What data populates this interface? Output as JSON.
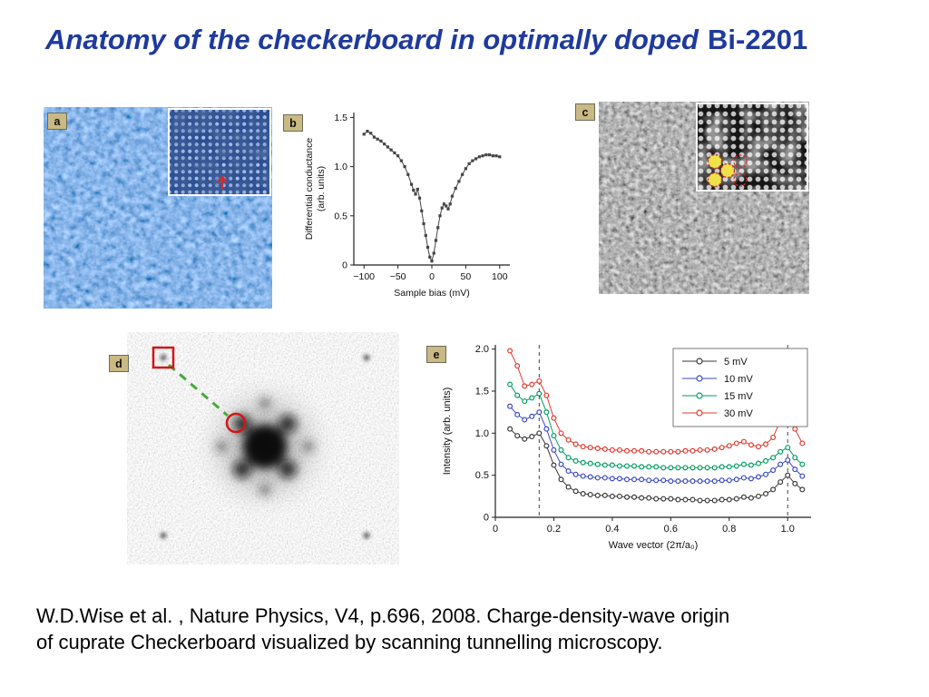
{
  "slide": {
    "title": {
      "italic_part": "Anatomy of the checkerboard in optimally doped",
      "bold_part": "Bi-2201",
      "color": "#1f3a9d"
    },
    "panel_labels": {
      "a": "a",
      "b": "b",
      "c": "c",
      "d": "d",
      "e": "e"
    },
    "citation": {
      "line1": "W.D.Wise et al. , Nature Physics, V4, p.696, 2008. Charge-density-wave origin",
      "line2": "of cuprate Checkerboard visualized by scanning tunnelling microscopy."
    },
    "annotation_colors": {
      "marker_red": "#d41414",
      "dashed_green": "#49a93c",
      "inset_marker_yellow": "#efe14a"
    }
  },
  "chart_data": [
    {
      "id": "panel-b",
      "type": "line",
      "title": "",
      "xlabel": "Sample bias (mV)",
      "ylabel": "Differential conductance (arb. units)",
      "xlim": [
        -115,
        115
      ],
      "ylim": [
        0,
        1.55
      ],
      "xticks": [
        -100,
        -50,
        0,
        50,
        100
      ],
      "xtick_labels": [
        "−100",
        "−50",
        "0",
        "50",
        "100"
      ],
      "yticks": [
        0,
        0.5,
        1.0,
        1.5
      ],
      "ytick_labels": [
        "0",
        "0.5",
        "1.0",
        "1.5"
      ],
      "grid": false,
      "series": [
        {
          "name": "dI/dV spectrum",
          "color": "#454545",
          "marker": "square",
          "x": [
            -100,
            -95,
            -90,
            -85,
            -80,
            -75,
            -70,
            -65,
            -60,
            -55,
            -50,
            -45,
            -40,
            -35,
            -30,
            -27,
            -24,
            -21,
            -18,
            -15,
            -12,
            -9,
            -6,
            -3,
            0,
            3,
            6,
            9,
            12,
            15,
            18,
            21,
            24,
            27,
            30,
            35,
            40,
            45,
            50,
            55,
            60,
            65,
            70,
            75,
            80,
            85,
            90,
            95,
            100
          ],
          "y": [
            1.33,
            1.36,
            1.34,
            1.3,
            1.28,
            1.26,
            1.23,
            1.2,
            1.17,
            1.14,
            1.11,
            1.06,
            1.0,
            0.92,
            0.82,
            0.76,
            0.72,
            0.77,
            0.68,
            0.55,
            0.42,
            0.3,
            0.18,
            0.08,
            0.04,
            0.12,
            0.25,
            0.38,
            0.5,
            0.58,
            0.62,
            0.6,
            0.57,
            0.62,
            0.7,
            0.78,
            0.85,
            0.92,
            0.98,
            1.03,
            1.06,
            1.08,
            1.1,
            1.11,
            1.12,
            1.12,
            1.11,
            1.11,
            1.1
          ]
        }
      ]
    },
    {
      "id": "panel-e",
      "type": "line",
      "title": "",
      "xlabel": "Wave vector (2π/a₀)",
      "ylabel": "Intensity (arb. units)",
      "xlim": [
        0,
        1.08
      ],
      "ylim": [
        0,
        2.05
      ],
      "xticks": [
        0,
        0.2,
        0.4,
        0.6,
        0.8,
        1.0
      ],
      "xtick_labels": [
        "0",
        "0.2",
        "0.4",
        "0.6",
        "0.8",
        "1.0"
      ],
      "yticks": [
        0,
        0.5,
        1.0,
        1.5,
        2.0
      ],
      "ytick_labels": [
        "0",
        "0.5",
        "1.0",
        "1.5",
        "2.0"
      ],
      "dashed_lines_x": [
        0.15,
        1.0
      ],
      "legend_position": "top-right",
      "grid": false,
      "x": [
        0.05,
        0.075,
        0.1,
        0.125,
        0.15,
        0.175,
        0.2,
        0.225,
        0.25,
        0.275,
        0.3,
        0.325,
        0.35,
        0.375,
        0.4,
        0.425,
        0.45,
        0.475,
        0.5,
        0.525,
        0.55,
        0.575,
        0.6,
        0.625,
        0.65,
        0.675,
        0.7,
        0.725,
        0.75,
        0.775,
        0.8,
        0.825,
        0.85,
        0.875,
        0.9,
        0.925,
        0.95,
        0.975,
        1.0,
        1.025,
        1.05
      ],
      "series": [
        {
          "name": "5 mV",
          "color": "#3a3a3a",
          "marker": "circle",
          "values": [
            1.05,
            0.97,
            0.93,
            0.96,
            1.0,
            0.85,
            0.62,
            0.45,
            0.36,
            0.31,
            0.28,
            0.27,
            0.26,
            0.26,
            0.25,
            0.25,
            0.24,
            0.24,
            0.23,
            0.23,
            0.22,
            0.22,
            0.22,
            0.21,
            0.21,
            0.21,
            0.2,
            0.2,
            0.2,
            0.21,
            0.21,
            0.22,
            0.24,
            0.23,
            0.25,
            0.28,
            0.33,
            0.42,
            0.5,
            0.4,
            0.33
          ]
        },
        {
          "name": "10 mV",
          "color": "#3c49c4",
          "marker": "circle",
          "values": [
            1.32,
            1.22,
            1.16,
            1.2,
            1.25,
            1.05,
            0.8,
            0.63,
            0.55,
            0.51,
            0.49,
            0.48,
            0.47,
            0.47,
            0.46,
            0.46,
            0.45,
            0.45,
            0.45,
            0.44,
            0.44,
            0.44,
            0.43,
            0.43,
            0.43,
            0.43,
            0.43,
            0.43,
            0.43,
            0.44,
            0.44,
            0.45,
            0.47,
            0.46,
            0.48,
            0.51,
            0.56,
            0.63,
            0.68,
            0.57,
            0.49
          ]
        },
        {
          "name": "15 mV",
          "color": "#009f5e",
          "marker": "circle",
          "values": [
            1.58,
            1.45,
            1.38,
            1.42,
            1.47,
            1.25,
            0.97,
            0.8,
            0.71,
            0.67,
            0.65,
            0.64,
            0.63,
            0.62,
            0.62,
            0.61,
            0.61,
            0.61,
            0.6,
            0.6,
            0.6,
            0.59,
            0.59,
            0.59,
            0.59,
            0.59,
            0.59,
            0.59,
            0.59,
            0.6,
            0.6,
            0.61,
            0.63,
            0.62,
            0.64,
            0.67,
            0.71,
            0.78,
            0.83,
            0.71,
            0.63
          ]
        },
        {
          "name": "30 mV",
          "color": "#e03a30",
          "marker": "circle",
          "values": [
            1.98,
            1.8,
            1.56,
            1.58,
            1.62,
            1.45,
            1.18,
            1.0,
            0.92,
            0.87,
            0.84,
            0.83,
            0.82,
            0.81,
            0.8,
            0.8,
            0.79,
            0.79,
            0.79,
            0.78,
            0.78,
            0.78,
            0.78,
            0.78,
            0.79,
            0.79,
            0.8,
            0.8,
            0.81,
            0.83,
            0.85,
            0.88,
            0.9,
            0.86,
            0.84,
            0.87,
            0.95,
            1.15,
            1.32,
            1.05,
            0.88
          ]
        }
      ]
    }
  ]
}
